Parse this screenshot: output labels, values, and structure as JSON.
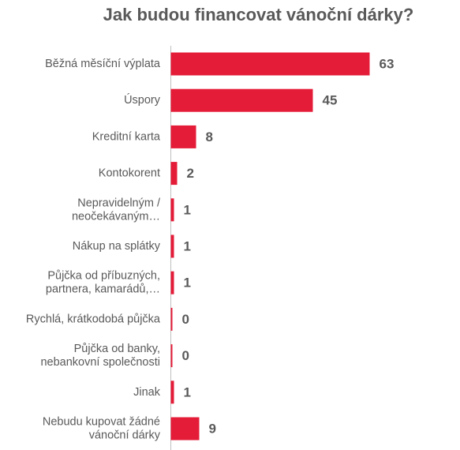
{
  "chart_data": {
    "type": "bar",
    "orientation": "horizontal",
    "title": "Jak budou financovat vánoční dárky?",
    "categories": [
      [
        "Běžná měsíční výplata"
      ],
      [
        "Úspory"
      ],
      [
        "Kreditní karta"
      ],
      [
        "Kontokorent"
      ],
      [
        "Nepravidelným /",
        "neočekávaným…"
      ],
      [
        "Nákup na splátky"
      ],
      [
        "Půjčka od příbuzných,",
        "partnera, kamarádů,…"
      ],
      [
        "Rychlá, krátkodobá půjčka"
      ],
      [
        "Půjčka od banky,",
        "nebankovní společnosti"
      ],
      [
        "Jinak"
      ],
      [
        "Nebudu kupovat žádné",
        "vánoční dárky"
      ]
    ],
    "values": [
      63,
      45,
      8,
      2,
      1,
      1,
      1,
      0,
      0,
      1,
      9
    ],
    "bar_color": "#e41c38",
    "text_color": "#595959",
    "axis_color": "#bfbfbf",
    "grid": false,
    "legend": false
  }
}
